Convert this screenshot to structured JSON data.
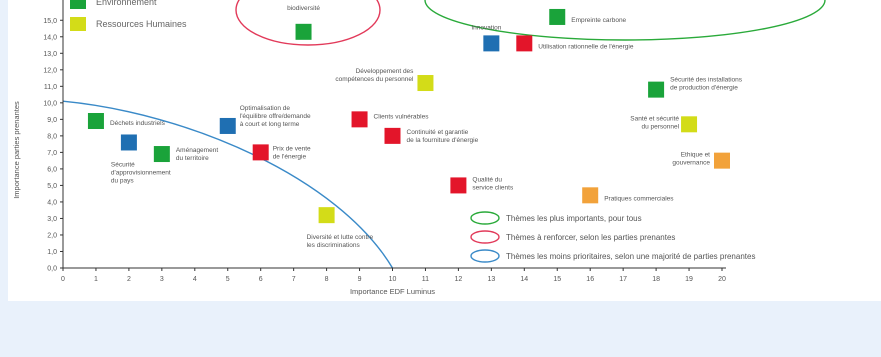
{
  "chart_data": {
    "type": "scatter",
    "title": "",
    "xlabel": "Importance EDF Luminus",
    "ylabel": "Importance parties prenantes",
    "xlim": [
      0,
      20
    ],
    "ylim": [
      0,
      15.5
    ],
    "x_ticks": [
      "0",
      "1",
      "2",
      "3",
      "4",
      "5",
      "6",
      "7",
      "8",
      "9",
      "10",
      "11",
      "12",
      "13",
      "14",
      "15",
      "16",
      "17",
      "18",
      "19",
      "20"
    ],
    "y_ticks": [
      "0,0",
      "1,0",
      "2,0",
      "3,0",
      "4,0",
      "5,0",
      "6,0",
      "7,0",
      "8,0",
      "9,0",
      "10,0",
      "11,0",
      "12,0",
      "13,0",
      "14,0",
      "15,0"
    ],
    "colors": {
      "environnement": "#1aa33a",
      "ressources_humaines": "#d3dc18",
      "blue": "#1f6fb2",
      "red": "#e3152a",
      "orange": "#f2a23a"
    },
    "legend_categories": [
      {
        "label": "Environnement",
        "color_key": "environnement"
      },
      {
        "label": "Ressources Humaines",
        "color_key": "ressources_humaines"
      }
    ],
    "points": [
      {
        "x": 7.3,
        "y": 14.3,
        "color_key": "environnement",
        "label": [
          "biodiversité"
        ]
      },
      {
        "x": 15.0,
        "y": 15.2,
        "color_key": "environnement",
        "label": [
          "Empreinte carbone"
        ]
      },
      {
        "x": 13.0,
        "y": 13.6,
        "color_key": "blue",
        "label": [
          "Innovation"
        ]
      },
      {
        "x": 14.0,
        "y": 13.6,
        "color_key": "red",
        "label": [
          "Utilisation rationnelle de l'énergie"
        ]
      },
      {
        "x": 11.0,
        "y": 11.2,
        "color_key": "ressources_humaines",
        "label": [
          "Développement des",
          "compétences du personnel"
        ]
      },
      {
        "x": 18.0,
        "y": 10.8,
        "color_key": "environnement",
        "label": [
          "Sécurité des installations",
          "de production d'énergie"
        ]
      },
      {
        "x": 1.0,
        "y": 8.9,
        "color_key": "environnement",
        "label": [
          "Déchets industriels"
        ]
      },
      {
        "x": 5.0,
        "y": 8.6,
        "color_key": "blue",
        "label": [
          "Optimalisation de",
          "l'équilibre offre/demande",
          "à court et long terme"
        ]
      },
      {
        "x": 9.0,
        "y": 9.0,
        "color_key": "red",
        "label": [
          "Clients vulnérables"
        ]
      },
      {
        "x": 10.0,
        "y": 8.0,
        "color_key": "red",
        "label": [
          "Continuité et garantie",
          "de la fourniture d'énergie"
        ]
      },
      {
        "x": 19.0,
        "y": 8.7,
        "color_key": "ressources_humaines",
        "label": [
          "Santé et sécurité",
          "du personnel"
        ]
      },
      {
        "x": 2.0,
        "y": 7.6,
        "color_key": "blue",
        "label": [
          "Sécurité",
          "d'approvisionnement",
          "du pays"
        ]
      },
      {
        "x": 3.0,
        "y": 6.9,
        "color_key": "environnement",
        "label": [
          "Aménagement",
          "du territoire"
        ]
      },
      {
        "x": 6.0,
        "y": 7.0,
        "color_key": "red",
        "label": [
          "Prix de vente",
          "de l'énergie"
        ]
      },
      {
        "x": 20.0,
        "y": 6.5,
        "color_key": "orange",
        "label": [
          "Ethique et",
          "gouvernance"
        ]
      },
      {
        "x": 12.0,
        "y": 5.0,
        "color_key": "red",
        "label": [
          "Qualité du",
          "service clients"
        ]
      },
      {
        "x": 16.0,
        "y": 4.4,
        "color_key": "orange",
        "label": [
          "Pratiques commerciales"
        ]
      },
      {
        "x": 8.0,
        "y": 3.2,
        "color_key": "ressources_humaines",
        "label": [
          "Diversité et lutte contre",
          "les discriminations"
        ]
      }
    ],
    "zone_legend": [
      {
        "label": "Thèmes les plus importants, pour tous",
        "color": "#2aaa3a"
      },
      {
        "label": "Thèmes à renforcer, selon les parties prenantes",
        "color": "#e23a5a"
      },
      {
        "label": "Thèmes les moins prioritaires, selon une majorité de parties prenantes",
        "color": "#3a8ac8"
      }
    ]
  }
}
